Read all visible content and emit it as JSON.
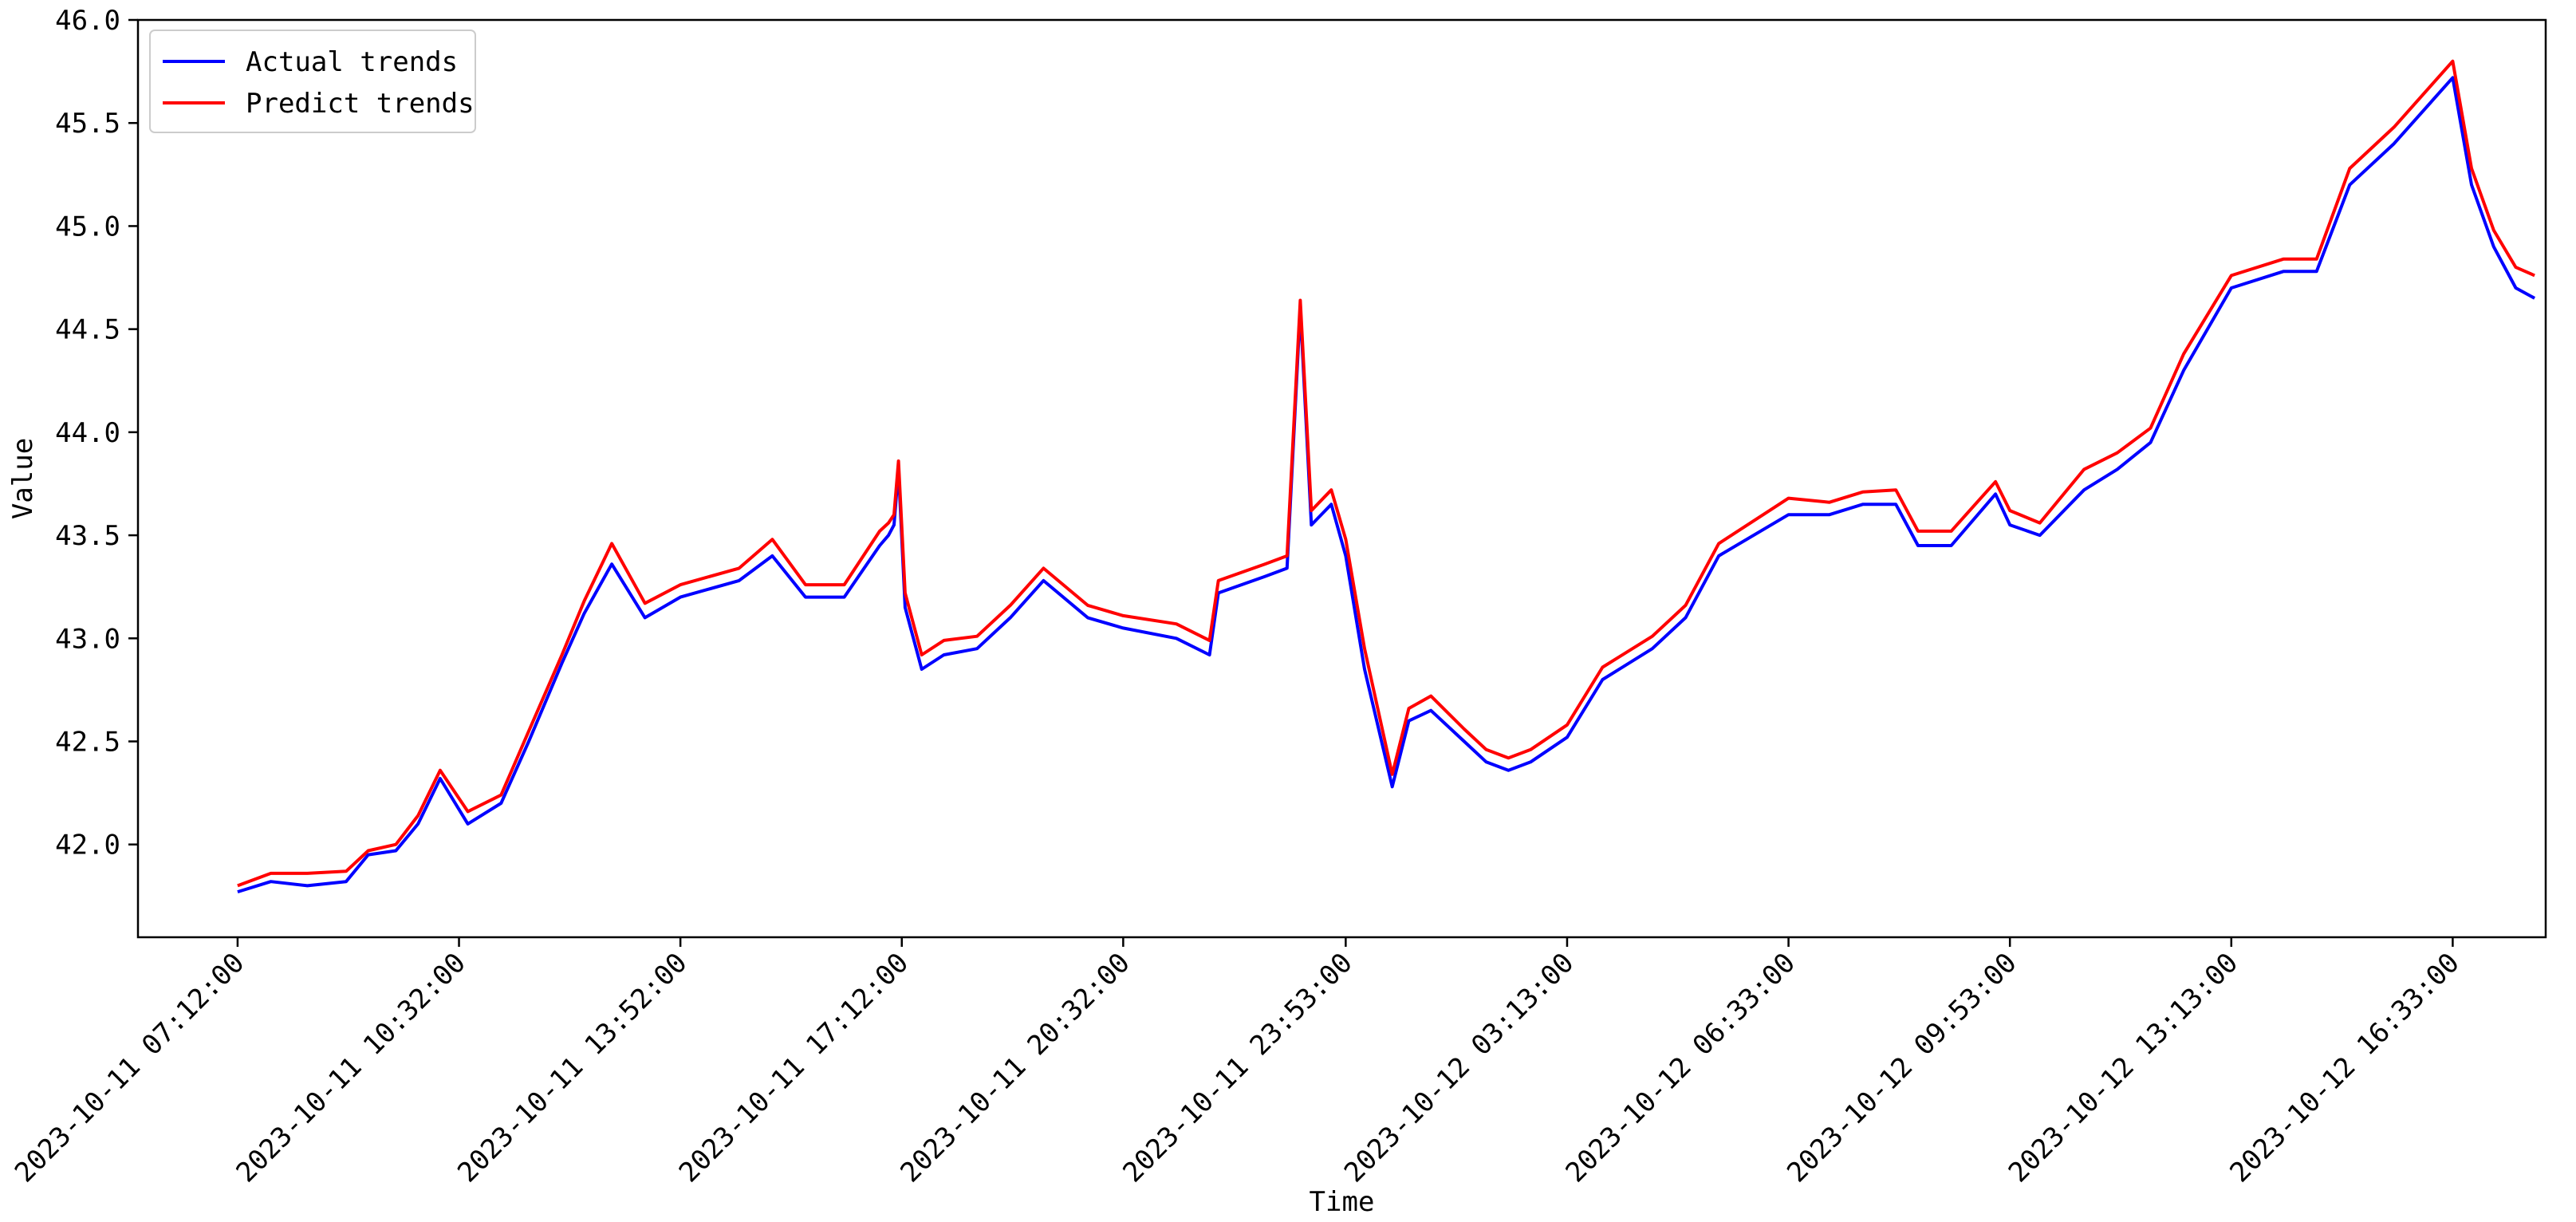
{
  "chart_data": {
    "type": "line",
    "title": "",
    "xlabel": "Time",
    "ylabel": "Value",
    "ylim": [
      41.55,
      46.0
    ],
    "y_ticks": [
      42.0,
      42.5,
      43.0,
      43.5,
      44.0,
      44.5,
      45.0,
      45.5,
      46.0
    ],
    "y_tick_labels": [
      "42.0",
      "42.5",
      "43.0",
      "43.5",
      "44.0",
      "44.5",
      "45.0",
      "45.5",
      "46.0"
    ],
    "x_range": [
      "2023-10-11 05:42:00",
      "2023-10-12 17:57:00"
    ],
    "x_ticks": [
      "2023-10-11 07:12:00",
      "2023-10-11 10:32:00",
      "2023-10-11 13:52:00",
      "2023-10-11 17:12:00",
      "2023-10-11 20:32:00",
      "2023-10-11 23:53:00",
      "2023-10-12 03:13:00",
      "2023-10-12 06:33:00",
      "2023-10-12 09:53:00",
      "2023-10-12 13:13:00",
      "2023-10-12 16:33:00"
    ],
    "x_tick_rotation": 45,
    "grid": false,
    "legend_position": "top-left",
    "x": [
      "2023-10-11 07:12:00",
      "2023-10-11 07:42:00",
      "2023-10-11 08:15:00",
      "2023-10-11 08:50:00",
      "2023-10-11 09:10:00",
      "2023-10-11 09:35:00",
      "2023-10-11 09:55:00",
      "2023-10-11 10:15:00",
      "2023-10-11 10:40:00",
      "2023-10-11 11:10:00",
      "2023-10-11 11:35:00",
      "2023-10-11 12:05:00",
      "2023-10-11 12:25:00",
      "2023-10-11 12:50:00",
      "2023-10-11 13:20:00",
      "2023-10-11 13:52:00",
      "2023-10-11 14:45:00",
      "2023-10-11 15:15:00",
      "2023-10-11 15:45:00",
      "2023-10-11 16:20:00",
      "2023-10-11 16:52:00",
      "2023-10-11 17:00:00",
      "2023-10-11 17:05:00",
      "2023-10-11 17:09:00",
      "2023-10-11 17:15:00",
      "2023-10-11 17:30:00",
      "2023-10-11 17:50:00",
      "2023-10-11 18:20:00",
      "2023-10-11 18:50:00",
      "2023-10-11 19:20:00",
      "2023-10-11 20:00:00",
      "2023-10-11 20:32:00",
      "2023-10-11 21:20:00",
      "2023-10-11 21:50:00",
      "2023-10-11 21:58:00",
      "2023-10-11 22:40:00",
      "2023-10-11 23:00:00",
      "2023-10-11 23:12:00",
      "2023-10-11 23:22:00",
      "2023-10-11 23:40:00",
      "2023-10-11 23:53:00",
      "2023-10-12 00:10:00",
      "2023-10-12 00:35:00",
      "2023-10-12 00:50:00",
      "2023-10-12 01:10:00",
      "2023-10-12 01:40:00",
      "2023-10-12 02:00:00",
      "2023-10-12 02:20:00",
      "2023-10-12 02:40:00",
      "2023-10-12 03:13:00",
      "2023-10-12 03:45:00",
      "2023-10-12 04:30:00",
      "2023-10-12 05:00:00",
      "2023-10-12 05:30:00",
      "2023-10-12 06:33:00",
      "2023-10-12 07:10:00",
      "2023-10-12 07:40:00",
      "2023-10-12 08:10:00",
      "2023-10-12 08:30:00",
      "2023-10-12 09:00:00",
      "2023-10-12 09:40:00",
      "2023-10-12 09:53:00",
      "2023-10-12 10:20:00",
      "2023-10-12 11:00:00",
      "2023-10-12 11:30:00",
      "2023-10-12 12:00:00",
      "2023-10-12 12:30:00",
      "2023-10-12 13:13:00",
      "2023-10-12 14:00:00",
      "2023-10-12 14:30:00",
      "2023-10-12 15:00:00",
      "2023-10-12 15:40:00",
      "2023-10-12 16:33:00",
      "2023-10-12 16:50:00",
      "2023-10-12 17:10:00",
      "2023-10-12 17:30:00",
      "2023-10-12 17:47:00"
    ],
    "series": [
      {
        "name": "Actual trends",
        "color": "#0000ff",
        "values": [
          41.77,
          41.82,
          41.8,
          41.82,
          41.95,
          41.97,
          42.1,
          42.32,
          42.1,
          42.2,
          42.5,
          42.88,
          43.12,
          43.36,
          43.1,
          43.2,
          43.28,
          43.4,
          43.2,
          43.2,
          43.45,
          43.5,
          43.55,
          43.82,
          43.15,
          42.85,
          42.92,
          42.95,
          43.1,
          43.28,
          43.1,
          43.05,
          43.0,
          42.92,
          43.22,
          43.3,
          43.34,
          44.6,
          43.55,
          43.65,
          43.4,
          42.85,
          42.28,
          42.6,
          42.65,
          42.5,
          42.4,
          42.36,
          42.4,
          42.52,
          42.8,
          42.95,
          43.1,
          43.4,
          43.6,
          43.6,
          43.65,
          43.65,
          43.45,
          43.45,
          43.7,
          43.55,
          43.5,
          43.72,
          43.82,
          43.95,
          44.3,
          44.7,
          44.78,
          44.78,
          45.2,
          45.4,
          45.72,
          45.2,
          44.9,
          44.7,
          44.65
        ]
      },
      {
        "name": "Predict trends",
        "color": "#ff0000",
        "values": [
          41.8,
          41.86,
          41.86,
          41.87,
          41.97,
          42.0,
          42.14,
          42.36,
          42.16,
          42.24,
          42.55,
          42.92,
          43.18,
          43.46,
          43.17,
          43.26,
          43.34,
          43.48,
          43.26,
          43.26,
          43.52,
          43.56,
          43.6,
          43.86,
          43.22,
          42.92,
          42.99,
          43.01,
          43.16,
          43.34,
          43.16,
          43.11,
          43.07,
          42.99,
          43.28,
          43.36,
          43.4,
          44.64,
          43.62,
          43.72,
          43.48,
          42.95,
          42.34,
          42.66,
          42.72,
          42.56,
          42.46,
          42.42,
          42.46,
          42.58,
          42.86,
          43.01,
          43.16,
          43.46,
          43.68,
          43.66,
          43.71,
          43.72,
          43.52,
          43.52,
          43.76,
          43.62,
          43.56,
          43.82,
          43.9,
          44.02,
          44.38,
          44.76,
          44.84,
          44.84,
          45.28,
          45.48,
          45.8,
          45.28,
          44.98,
          44.8,
          44.76
        ]
      }
    ]
  }
}
